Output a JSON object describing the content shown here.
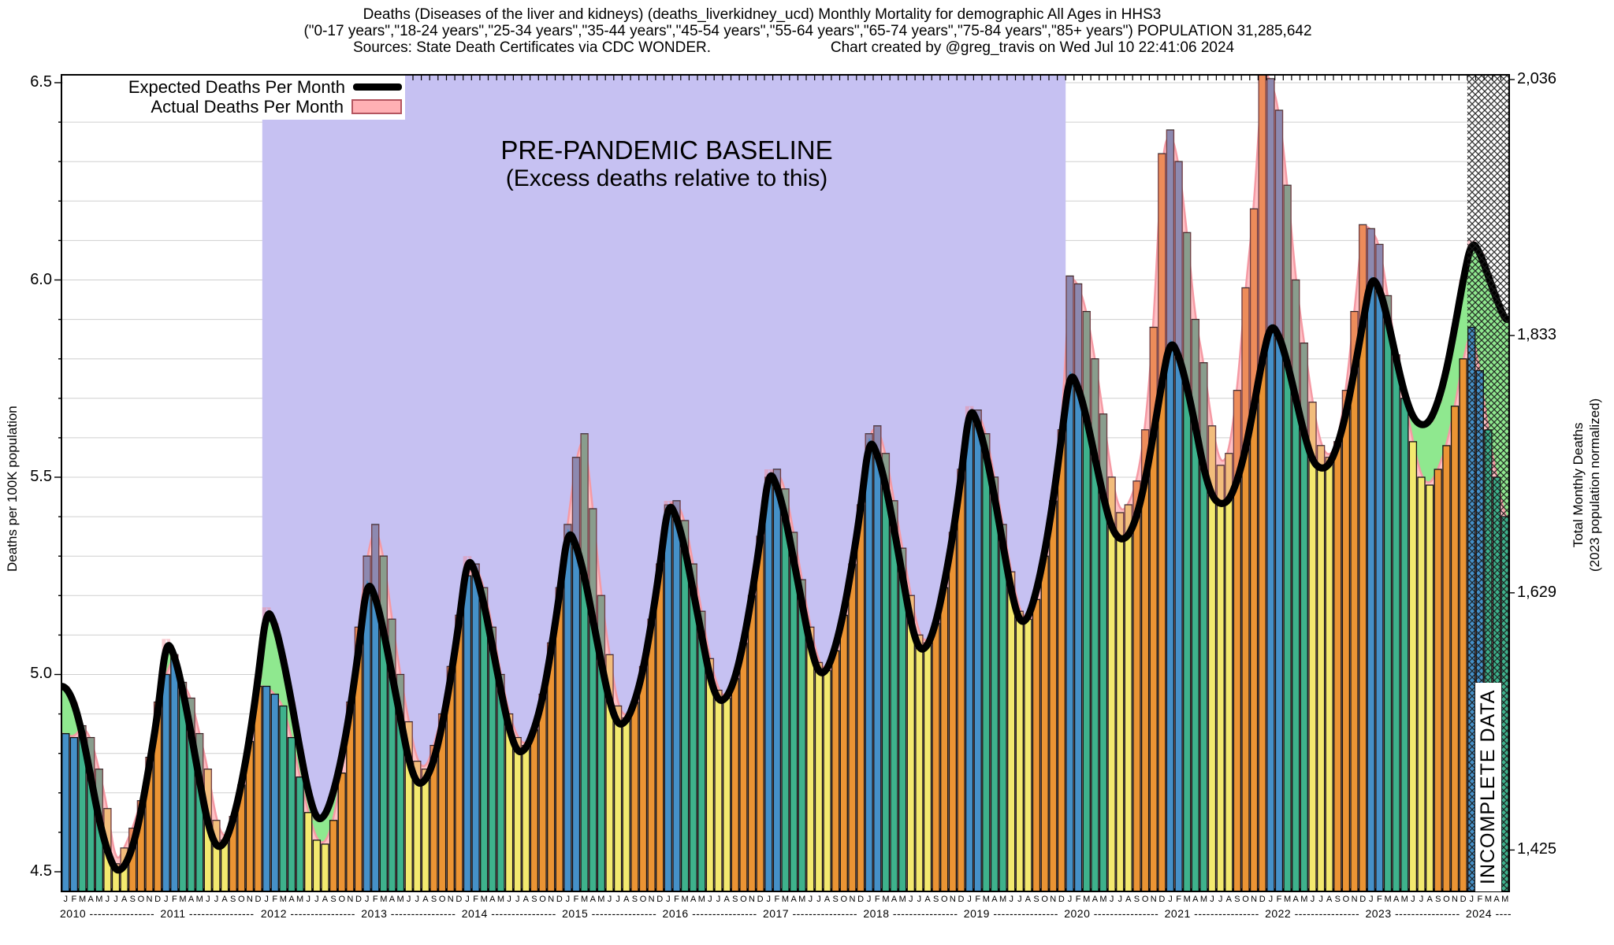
{
  "header": {
    "line1": "Deaths (Diseases of the liver and kidneys) (deaths_liverkidney_ucd) Monthly Mortality for demographic All Ages in HHS3",
    "line2": "(\"0-17 years\",\"18-24 years\",\"25-34 years\",\"35-44 years\",\"45-54 years\",\"55-64 years\",\"65-74 years\",\"75-84 years\",\"85+ years\") POPULATION 31,285,642",
    "line3_sources": "Sources: State Death Certificates via CDC WONDER.",
    "line3_credit": "Chart created by @greg_travis on Wed Jul 10 22:41:06 2024"
  },
  "legend": {
    "expected_label": "Expected Deaths Per Month",
    "actual_label": "Actual Deaths Per Month"
  },
  "annotations": {
    "baseline_title": "PRE-PANDEMIC BASELINE",
    "baseline_subtitle": "(Excess deaths relative to this)",
    "incomplete": "INCOMPLETE DATA"
  },
  "axes": {
    "left_label": "Deaths per 100K population",
    "right_label_line1": "Total Monthly Deaths",
    "right_label_line2": "(2023 population normalized)",
    "left_ticks": [
      {
        "label": "6.5",
        "value": 6.5
      },
      {
        "label": "6.0",
        "value": 6.0
      },
      {
        "label": "5.5",
        "value": 5.5
      },
      {
        "label": "5.0",
        "value": 5.0
      },
      {
        "label": "4.5",
        "value": 4.5
      }
    ],
    "right_ticks": [
      {
        "label": "2,036",
        "value": 6.508
      },
      {
        "label": "1,833",
        "value": 5.859
      },
      {
        "label": "1,629",
        "value": 5.207
      },
      {
        "label": "1,425",
        "value": 4.555
      }
    ]
  },
  "chart_data": {
    "type": "bar",
    "month_letters": "JFMAMJJASOND",
    "years": [
      {
        "label": "2010",
        "dashes": "----------------"
      },
      {
        "label": "2011",
        "dashes": "----------------"
      },
      {
        "label": "2012",
        "dashes": "----------------"
      },
      {
        "label": "2013",
        "dashes": "----------------"
      },
      {
        "label": "2014",
        "dashes": "----------------"
      },
      {
        "label": "2015",
        "dashes": "----------------"
      },
      {
        "label": "2016",
        "dashes": "----------------"
      },
      {
        "label": "2017",
        "dashes": "----------------"
      },
      {
        "label": "2018",
        "dashes": "----------------"
      },
      {
        "label": "2019",
        "dashes": "----------------"
      },
      {
        "label": "2020",
        "dashes": "----------------"
      },
      {
        "label": "2021",
        "dashes": "----------------"
      },
      {
        "label": "2022",
        "dashes": "----------------"
      },
      {
        "label": "2023",
        "dashes": "----------------"
      },
      {
        "label": "2024",
        "dashes": "----"
      }
    ],
    "ylim": [
      4.45,
      6.52
    ],
    "grid_step": 0.1,
    "baseline_window": {
      "start_month_index": 24,
      "end_month_index": 119
    },
    "incomplete_start_index": 168,
    "series_by_year": {
      "expected": [
        [
          4.97,
          4.93,
          4.85,
          4.74,
          4.63,
          4.55,
          4.5,
          4.51,
          4.56,
          4.65,
          4.77,
          4.9
        ],
        [
          5.09,
          5.05,
          4.96,
          4.85,
          4.73,
          4.62,
          4.56,
          4.57,
          4.63,
          4.72,
          4.84,
          4.99
        ],
        [
          5.17,
          5.13,
          5.04,
          4.93,
          4.81,
          4.7,
          4.63,
          4.64,
          4.7,
          4.79,
          4.91,
          5.06
        ],
        [
          5.24,
          5.2,
          5.11,
          5.0,
          4.89,
          4.78,
          4.72,
          4.73,
          4.78,
          4.87,
          4.99,
          5.13
        ],
        [
          5.3,
          5.26,
          5.18,
          5.07,
          4.96,
          4.86,
          4.8,
          4.81,
          4.86,
          4.94,
          5.06,
          5.2
        ],
        [
          5.37,
          5.33,
          5.25,
          5.14,
          5.03,
          4.93,
          4.87,
          4.88,
          4.93,
          5.01,
          5.13,
          5.27
        ],
        [
          5.44,
          5.4,
          5.32,
          5.21,
          5.1,
          4.99,
          4.93,
          4.94,
          4.99,
          5.08,
          5.2,
          5.34
        ],
        [
          5.52,
          5.48,
          5.4,
          5.29,
          5.18,
          5.07,
          5.0,
          5.01,
          5.07,
          5.16,
          5.28,
          5.42
        ],
        [
          5.6,
          5.56,
          5.48,
          5.37,
          5.25,
          5.13,
          5.06,
          5.07,
          5.13,
          5.23,
          5.35,
          5.5
        ],
        [
          5.68,
          5.64,
          5.56,
          5.45,
          5.33,
          5.21,
          5.13,
          5.14,
          5.21,
          5.31,
          5.44,
          5.6
        ],
        [
          5.77,
          5.73,
          5.65,
          5.55,
          5.45,
          5.37,
          5.34,
          5.35,
          5.4,
          5.49,
          5.61,
          5.74
        ],
        [
          5.85,
          5.81,
          5.73,
          5.63,
          5.52,
          5.45,
          5.43,
          5.44,
          5.49,
          5.57,
          5.68,
          5.8
        ],
        [
          5.89,
          5.86,
          5.79,
          5.7,
          5.61,
          5.54,
          5.52,
          5.53,
          5.58,
          5.66,
          5.77,
          5.89
        ],
        [
          6.01,
          5.98,
          5.9,
          5.8,
          5.71,
          5.65,
          5.63,
          5.64,
          5.69,
          5.77,
          5.88,
          6.0
        ],
        [
          6.1,
          6.07,
          6.01,
          5.95,
          5.9
        ]
      ],
      "actual": [
        [
          4.85,
          4.84,
          4.87,
          4.84,
          4.76,
          4.66,
          4.52,
          4.56,
          4.61,
          4.68,
          4.79,
          4.93
        ],
        [
          5.0,
          5.05,
          4.98,
          4.94,
          4.85,
          4.76,
          4.63,
          4.58,
          4.64,
          4.72,
          4.83,
          4.97
        ],
        [
          4.97,
          4.95,
          4.92,
          4.84,
          4.74,
          4.65,
          4.58,
          4.57,
          4.63,
          4.75,
          4.93,
          5.12
        ],
        [
          5.3,
          5.38,
          5.3,
          5.14,
          5.0,
          4.88,
          4.78,
          4.76,
          4.82,
          4.9,
          5.02,
          5.15
        ],
        [
          5.25,
          5.28,
          5.22,
          5.12,
          5.0,
          4.9,
          4.84,
          4.82,
          4.86,
          4.95,
          5.08,
          5.22
        ],
        [
          5.38,
          5.55,
          5.61,
          5.42,
          5.2,
          5.05,
          4.92,
          4.89,
          4.93,
          5.02,
          5.14,
          5.28
        ],
        [
          5.43,
          5.44,
          5.39,
          5.28,
          5.16,
          5.04,
          4.96,
          4.94,
          4.99,
          5.08,
          5.2,
          5.35
        ],
        [
          5.5,
          5.52,
          5.47,
          5.36,
          5.24,
          5.12,
          5.03,
          5.01,
          5.06,
          5.15,
          5.28,
          5.43
        ],
        [
          5.61,
          5.63,
          5.56,
          5.44,
          5.32,
          5.2,
          5.1,
          5.08,
          5.13,
          5.22,
          5.36,
          5.52
        ],
        [
          5.65,
          5.67,
          5.61,
          5.5,
          5.38,
          5.26,
          5.16,
          5.14,
          5.19,
          5.3,
          5.44,
          5.62
        ],
        [
          6.01,
          5.99,
          5.92,
          5.8,
          5.66,
          5.5,
          5.41,
          5.43,
          5.49,
          5.62,
          5.88,
          6.32
        ],
        [
          6.38,
          6.3,
          6.12,
          5.9,
          5.79,
          5.63,
          5.53,
          5.56,
          5.72,
          5.98,
          6.18,
          6.53
        ],
        [
          6.51,
          6.43,
          6.24,
          6.0,
          5.84,
          5.69,
          5.58,
          5.55,
          5.59,
          5.72,
          5.92,
          6.14
        ],
        [
          6.13,
          6.09,
          5.96,
          5.81,
          5.7,
          5.59,
          5.5,
          5.48,
          5.52,
          5.58,
          5.68,
          5.8
        ],
        [
          5.88,
          5.77,
          5.62,
          5.5,
          5.4
        ]
      ]
    },
    "colors": {
      "bar_jan_feb_blue": "#4590c8",
      "bar_mar_may_teal": "#3eb28c",
      "bar_jun_aug_yellow": "#f3e96f",
      "bar_sep_dec_orange": "#eb9434",
      "baseline_band": "#c6c1f2",
      "expected_line": "#000000",
      "actual_area": "#ffc2c6",
      "actual_edge": "#f59aa4",
      "excess_tint": "#f0808f",
      "deficit_green": "#8fe88f",
      "grid": "#cfcfcf"
    }
  }
}
